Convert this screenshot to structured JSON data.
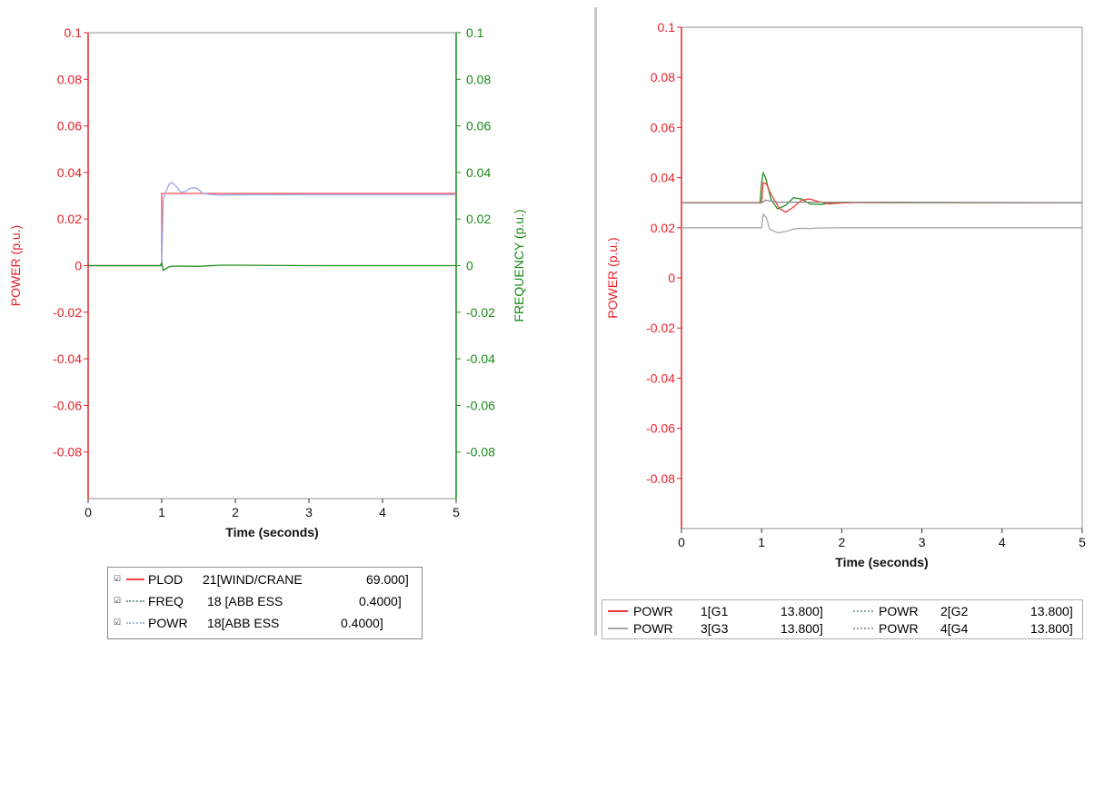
{
  "left_legend": [
    {
      "checked": true,
      "quantity": "PLOD",
      "bus": "21[WIND/CRANE",
      "kv": "69.000]",
      "color": "#ff3b3b",
      "style": "solid"
    },
    {
      "checked": true,
      "quantity": "FREQ",
      "bus": "18 [ABB ESS",
      "kv": "0.4000]",
      "color": "#7a9a9a",
      "style": "dotted"
    },
    {
      "checked": true,
      "quantity": "POWR",
      "bus": "18[ABB ESS",
      "kv": "0.4000]",
      "color": "#aab4e0",
      "style": "dotted"
    }
  ],
  "right_legend": [
    {
      "quantity": "POWR",
      "bus": "1[G1",
      "kv": "13.800]",
      "color": "#e33",
      "style": "solid"
    },
    {
      "quantity": "POWR",
      "bus": "2[G2",
      "kv": "13.800]",
      "color": "#8aa",
      "style": "dotted"
    },
    {
      "quantity": "POWR",
      "bus": "3[G3",
      "kv": "13.800]",
      "color": "#aaa",
      "style": "solid"
    },
    {
      "quantity": "POWR",
      "bus": "4[G4",
      "kv": "13.800]",
      "color": "#999",
      "style": "dotted"
    }
  ],
  "chart_data": [
    {
      "type": "line",
      "xlabel": "Time (seconds)",
      "ylabel": "POWER (p.u.)",
      "y2label": "FREQUENCY (p.u.)",
      "xlim": [
        0,
        5
      ],
      "ylim": [
        -0.1,
        0.1
      ],
      "y2lim": [
        -0.1,
        0.1
      ],
      "x_ticks": [
        "0",
        "1",
        "2",
        "3",
        "4",
        "5"
      ],
      "y_ticks": [
        "0.1",
        "0.08",
        "0.06",
        "0.04",
        "0.02",
        "0",
        "-0.02",
        "-0.04",
        "-0.06",
        "-0.08"
      ],
      "y2_ticks": [
        "0.1",
        "0.08",
        "0.06",
        "0.04",
        "0.02",
        "0",
        "-0.02",
        "-0.04",
        "-0.06",
        "-0.08"
      ],
      "ylabel_color": "#e8222a",
      "y2label_color": "#1a8a1a",
      "series": [
        {
          "axis": "left",
          "color": "#333333",
          "x": [
            0,
            0.98
          ],
          "y": [
            0,
            0
          ]
        },
        {
          "axis": "left",
          "color": "#ff4a4a",
          "x": [
            0.98,
            1.0,
            1.0,
            5.0
          ],
          "y": [
            0,
            0,
            0.031,
            0.031
          ]
        },
        {
          "axis": "left",
          "color": "#9aa6e8",
          "x": [
            0.98,
            1.0,
            1.02,
            1.06,
            1.1,
            1.14,
            1.2,
            1.26,
            1.32,
            1.38,
            1.44,
            1.5,
            1.56,
            1.65,
            1.8,
            2.2,
            3.0,
            5.0
          ],
          "y": [
            0,
            0,
            0.0285,
            0.032,
            0.035,
            0.0357,
            0.034,
            0.0315,
            0.0318,
            0.0331,
            0.0335,
            0.0327,
            0.031,
            0.0306,
            0.0303,
            0.0304,
            0.0305,
            0.0305
          ]
        },
        {
          "axis": "right",
          "color": "#1f8f1f",
          "x": [
            0,
            0.98,
            1.0,
            1.02,
            1.05,
            1.08,
            1.12,
            1.2,
            1.5,
            1.8,
            2.0,
            3.0,
            5.0
          ],
          "y": [
            0,
            0,
            0.0012,
            -0.002,
            -0.0015,
            -0.0008,
            -0.0003,
            -0.0002,
            -0.0003,
            0.0002,
            0.0002,
            0.0,
            0.0
          ]
        }
      ]
    },
    {
      "type": "line",
      "xlabel": "Time (seconds)",
      "ylabel": "POWER (p.u.)",
      "xlim": [
        0,
        5
      ],
      "ylim": [
        -0.1,
        0.1
      ],
      "x_ticks": [
        "0",
        "1",
        "2",
        "3",
        "4",
        "5"
      ],
      "y_ticks": [
        "0.1",
        "0.08",
        "0.06",
        "0.04",
        "0.02",
        "0",
        "-0.02",
        "-0.04",
        "-0.06",
        "-0.08"
      ],
      "ylabel_color": "#e8222a",
      "series": [
        {
          "color": "#aaaaaa",
          "x": [
            0,
            0.98,
            1.0,
            1.02,
            1.06,
            1.1,
            1.2,
            1.3,
            1.4,
            1.5,
            1.6,
            1.7,
            2.0,
            2.5,
            5.0
          ],
          "y": [
            0.02,
            0.02,
            0.02,
            0.0255,
            0.024,
            0.0195,
            0.018,
            0.0185,
            0.0195,
            0.0198,
            0.0197,
            0.0199,
            0.02,
            0.02,
            0.02
          ]
        },
        {
          "color": "#1f8f1f",
          "x": [
            0,
            0.98,
            1.0,
            1.02,
            1.05,
            1.08,
            1.12,
            1.2,
            1.3,
            1.4,
            1.5,
            1.6,
            1.75,
            1.9,
            2.1,
            2.5,
            5.0
          ],
          "y": [
            0.03,
            0.03,
            0.038,
            0.0418,
            0.04,
            0.036,
            0.031,
            0.0275,
            0.029,
            0.032,
            0.0315,
            0.0295,
            0.0293,
            0.0302,
            0.0301,
            0.03,
            0.03
          ]
        },
        {
          "color": "#ee3b3b",
          "x": [
            0,
            0.98,
            1.0,
            1.02,
            1.06,
            1.1,
            1.16,
            1.22,
            1.3,
            1.4,
            1.5,
            1.6,
            1.7,
            1.85,
            2.0,
            2.3,
            5.0
          ],
          "y": [
            0.03,
            0.03,
            0.03,
            0.038,
            0.0375,
            0.0345,
            0.031,
            0.0278,
            0.0262,
            0.0283,
            0.031,
            0.0315,
            0.0305,
            0.0295,
            0.0299,
            0.0301,
            0.03
          ]
        },
        {
          "color": "#888888",
          "x": [
            0,
            0.98,
            1.0,
            1.05,
            1.2,
            5.0
          ],
          "y": [
            0.0299,
            0.0299,
            0.03,
            0.031,
            0.0302,
            0.03
          ]
        }
      ]
    }
  ]
}
